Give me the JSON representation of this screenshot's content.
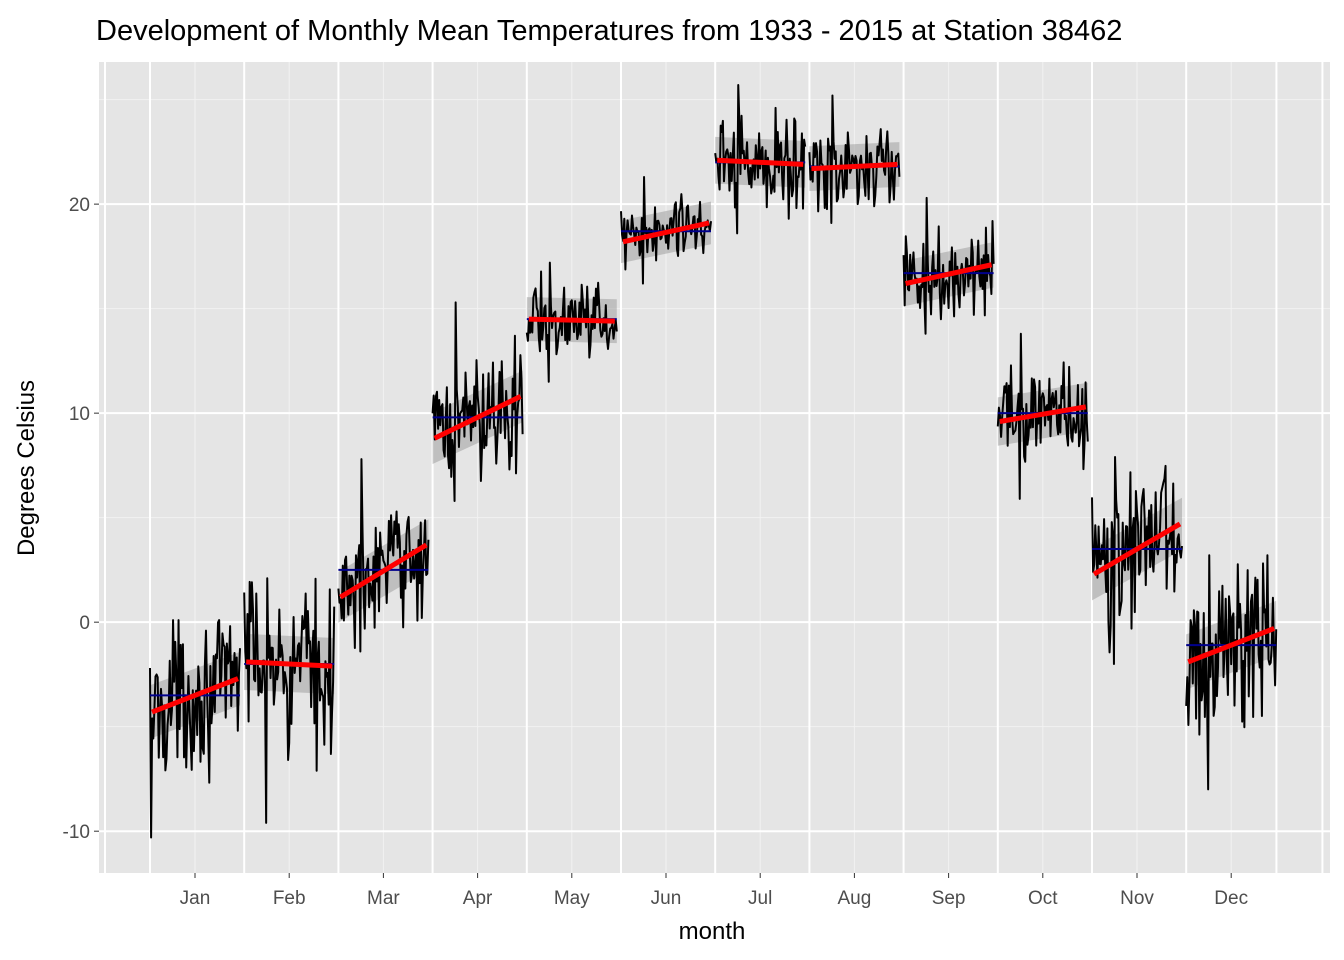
{
  "chart_data": {
    "type": "line",
    "title": "Development of Monthly Mean Temperatures from 1933 - 2015 at Station 38462",
    "xlabel": "month",
    "ylabel": "Degrees Celsius",
    "ylim": [
      -12.0,
      26.8
    ],
    "y_ticks": [
      -10,
      0,
      10,
      20
    ],
    "y_tick_labels": [
      "-10",
      "0",
      "10",
      "20"
    ],
    "categories": [
      "Jan",
      "Feb",
      "Mar",
      "Apr",
      "May",
      "Jun",
      "Jul",
      "Aug",
      "Sep",
      "Oct",
      "Nov",
      "Dec"
    ],
    "years": [
      1933,
      2015
    ],
    "grid": true,
    "background": "#e5e5e5",
    "series": [
      {
        "color": "#000000",
        "values": [
          {
            "category": "Jan",
            "mean": -3.5,
            "min": -10.3,
            "max": 0.1
          },
          {
            "category": "Feb",
            "mean": -2.0,
            "min": -9.6,
            "max": 2.1
          },
          {
            "category": "Mar",
            "mean": 2.5,
            "min": -1.4,
            "max": 7.8
          },
          {
            "category": "Apr",
            "mean": 9.8,
            "min": 5.8,
            "max": 15.3
          },
          {
            "category": "May",
            "mean": 14.5,
            "min": 11.5,
            "max": 17.2
          },
          {
            "category": "Jun",
            "mean": 18.7,
            "min": 16.2,
            "max": 21.3
          },
          {
            "category": "Jul",
            "mean": 22.0,
            "min": 18.6,
            "max": 25.7
          },
          {
            "category": "Aug",
            "mean": 21.8,
            "min": 19.1,
            "max": 25.2
          },
          {
            "category": "Sep",
            "mean": 16.7,
            "min": 13.8,
            "max": 20.3
          },
          {
            "category": "Oct",
            "mean": 10.0,
            "min": 5.9,
            "max": 13.8
          },
          {
            "category": "Nov",
            "mean": 3.5,
            "min": -2.0,
            "max": 7.9
          },
          {
            "category": "Dec",
            "mean": -1.1,
            "min": -8.0,
            "max": 3.2
          }
        ]
      },
      {
        "color": "#00008b",
        "values": [
          -3.5,
          -2.0,
          2.5,
          9.8,
          14.5,
          18.7,
          22.0,
          21.8,
          16.7,
          10.0,
          3.5,
          -1.1
        ]
      },
      {
        "color": "#ff0000",
        "values": [
          {
            "category": "Jan",
            "start": -4.3,
            "end": -2.7
          },
          {
            "category": "Feb",
            "start": -1.9,
            "end": -2.1
          },
          {
            "category": "Mar",
            "start": 1.2,
            "end": 3.7
          },
          {
            "category": "Apr",
            "start": 8.8,
            "end": 10.8
          },
          {
            "category": "May",
            "start": 14.5,
            "end": 14.4
          },
          {
            "category": "Jun",
            "start": 18.2,
            "end": 19.1
          },
          {
            "category": "Jul",
            "start": 22.1,
            "end": 21.9
          },
          {
            "category": "Aug",
            "start": 21.7,
            "end": 21.9
          },
          {
            "category": "Sep",
            "start": 16.2,
            "end": 17.1
          },
          {
            "category": "Oct",
            "start": 9.6,
            "end": 10.3
          },
          {
            "category": "Nov",
            "start": 2.3,
            "end": 4.7
          },
          {
            "category": "Dec",
            "start": -1.9,
            "end": -0.3
          }
        ]
      }
    ]
  }
}
